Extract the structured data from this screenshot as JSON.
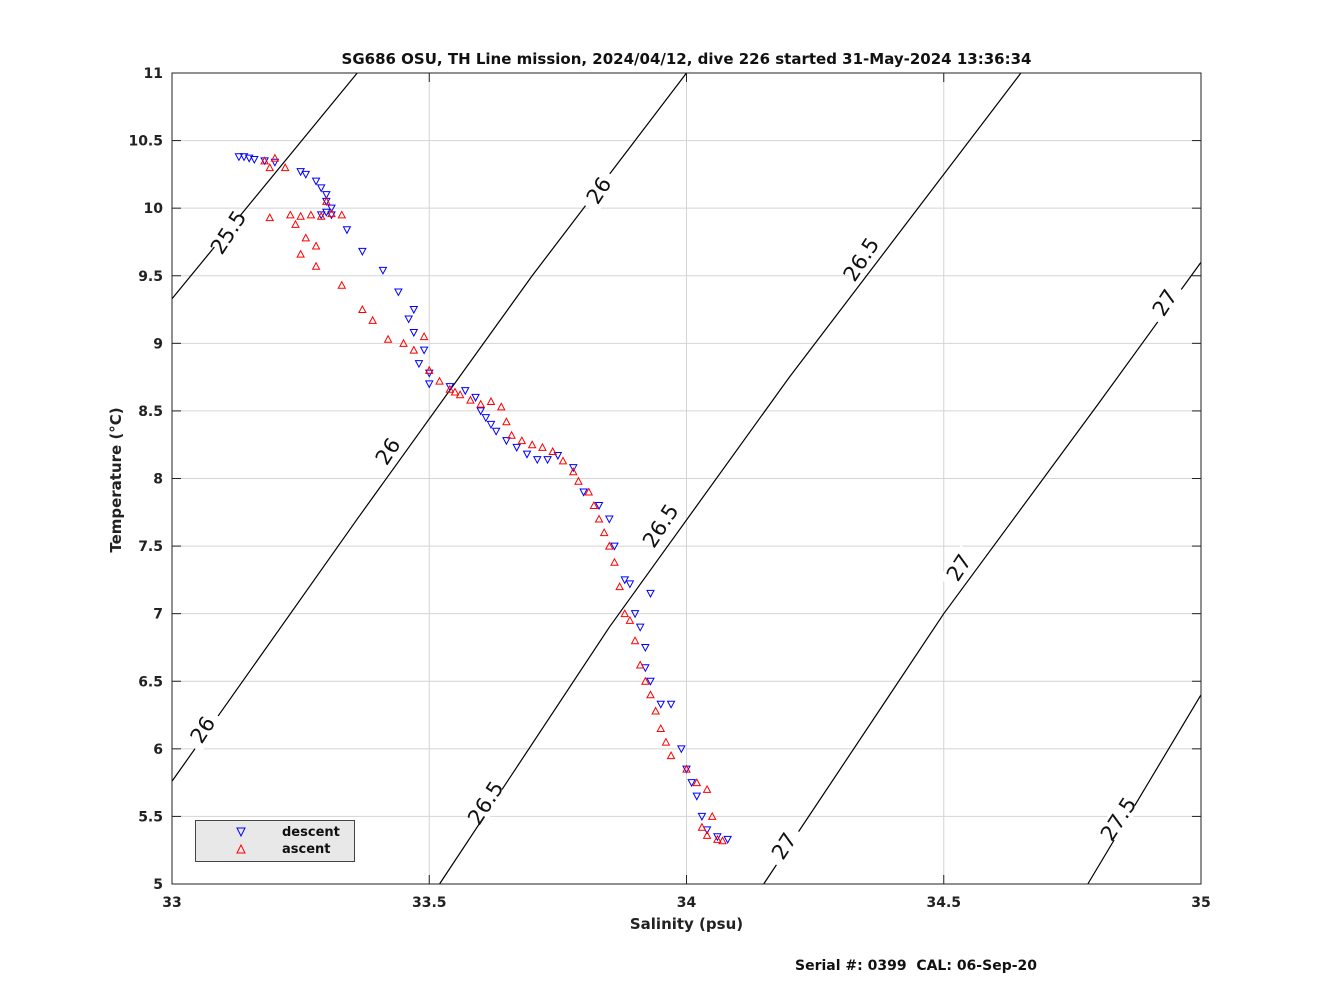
{
  "chart_data": {
    "type": "scatter",
    "title": "SG686 OSU, TH Line mission, 2024/04/12, dive 226 started 31-May-2024 13:36:34",
    "xlabel": "Salinity (psu)",
    "ylabel": "Temperature (°C)",
    "xlim": [
      33,
      35
    ],
    "ylim": [
      5,
      11
    ],
    "xticks": [
      "33",
      "33.5",
      "34",
      "34.5",
      "35"
    ],
    "yticks": [
      "5",
      "5.5",
      "6",
      "6.5",
      "7",
      "7.5",
      "8",
      "8.5",
      "9",
      "9.5",
      "10",
      "10.5",
      "11"
    ],
    "grid": true,
    "legend_position": "bottom-left",
    "isopycnals": [
      {
        "value": 25.5,
        "points": [
          [
            33.0,
            9.33
          ],
          [
            33.36,
            11.0
          ]
        ],
        "labels": [
          {
            "text": "25.5",
            "x": 33.11,
            "y": 9.82
          }
        ]
      },
      {
        "value": 26.0,
        "points": [
          [
            33.0,
            5.76
          ],
          [
            33.36,
            7.7
          ],
          [
            33.7,
            9.5
          ],
          [
            34.0,
            11.0
          ]
        ],
        "labels": [
          {
            "text": "26",
            "x": 33.06,
            "y": 6.14
          },
          {
            "text": "26",
            "x": 33.42,
            "y": 8.2
          },
          {
            "text": "26",
            "x": 33.83,
            "y": 10.13
          }
        ]
      },
      {
        "value": 26.5,
        "points": [
          [
            33.52,
            5.0
          ],
          [
            33.85,
            6.9
          ],
          [
            34.2,
            8.75
          ],
          [
            34.65,
            11.0
          ]
        ],
        "labels": [
          {
            "text": "26.5",
            "x": 33.61,
            "y": 5.6
          },
          {
            "text": "26.5",
            "x": 33.95,
            "y": 7.65
          },
          {
            "text": "26.5",
            "x": 34.34,
            "y": 9.62
          }
        ]
      },
      {
        "value": 27.0,
        "points": [
          [
            34.15,
            5.0
          ],
          [
            34.5,
            7.0
          ],
          [
            34.8,
            8.55
          ],
          [
            35.0,
            9.6
          ]
        ],
        "labels": [
          {
            "text": "27",
            "x": 34.19,
            "y": 5.28
          },
          {
            "text": "27",
            "x": 34.53,
            "y": 7.34
          },
          {
            "text": "27",
            "x": 34.93,
            "y": 9.3
          }
        ]
      },
      {
        "value": 27.5,
        "points": [
          [
            34.78,
            5.0
          ],
          [
            35.0,
            6.4
          ]
        ],
        "labels": [
          {
            "text": "27.5",
            "x": 34.84,
            "y": 5.48
          }
        ]
      }
    ],
    "series": [
      {
        "name": "descent",
        "color": "#0000ff",
        "marker": "triangle-down",
        "x": [
          33.13,
          33.14,
          33.15,
          33.16,
          33.18,
          33.2,
          33.25,
          33.26,
          33.28,
          33.29,
          33.3,
          33.3,
          33.31,
          33.29,
          33.3,
          33.31,
          33.34,
          33.37,
          33.41,
          33.44,
          33.47,
          33.46,
          33.47,
          33.49,
          33.48,
          33.5,
          33.5,
          33.54,
          33.57,
          33.59,
          33.6,
          33.61,
          33.62,
          33.63,
          33.65,
          33.67,
          33.69,
          33.71,
          33.73,
          33.75,
          33.78,
          33.8,
          33.83,
          33.85,
          33.86,
          33.88,
          33.89,
          33.9,
          33.91,
          33.92,
          33.93,
          33.92,
          33.93,
          33.95,
          33.97,
          33.99,
          34.0,
          34.01,
          34.02,
          34.03,
          34.04,
          34.06,
          34.08
        ],
        "y": [
          10.38,
          10.38,
          10.37,
          10.36,
          10.35,
          10.34,
          10.27,
          10.25,
          10.2,
          10.15,
          10.1,
          10.05,
          10.0,
          9.95,
          9.97,
          9.95,
          9.84,
          9.68,
          9.54,
          9.38,
          9.25,
          9.18,
          9.08,
          8.95,
          8.85,
          8.78,
          8.7,
          8.68,
          8.65,
          8.6,
          8.5,
          8.45,
          8.4,
          8.35,
          8.28,
          8.23,
          8.18,
          8.14,
          8.14,
          8.17,
          8.08,
          7.9,
          7.8,
          7.7,
          7.5,
          7.25,
          7.22,
          7.0,
          6.9,
          6.75,
          7.15,
          6.6,
          6.5,
          6.33,
          6.33,
          6.0,
          5.85,
          5.75,
          5.65,
          5.5,
          5.4,
          5.35,
          5.33
        ]
      },
      {
        "name": "ascent",
        "color": "#ff0000",
        "marker": "triangle-up",
        "x": [
          33.18,
          33.19,
          33.2,
          33.22,
          33.19,
          33.23,
          33.25,
          33.27,
          33.29,
          33.31,
          33.33,
          33.3,
          33.24,
          33.26,
          33.28,
          33.25,
          33.28,
          33.33,
          33.37,
          33.39,
          33.42,
          33.45,
          33.47,
          33.49,
          33.5,
          33.52,
          33.54,
          33.55,
          33.56,
          33.58,
          33.6,
          33.62,
          33.64,
          33.65,
          33.66,
          33.68,
          33.7,
          33.72,
          33.74,
          33.76,
          33.78,
          33.79,
          33.81,
          33.82,
          33.83,
          33.84,
          33.85,
          33.86,
          33.87,
          33.88,
          33.89,
          33.9,
          33.91,
          33.92,
          33.93,
          33.94,
          33.95,
          33.96,
          33.97,
          34.0,
          34.02,
          34.04,
          34.05,
          34.03,
          34.04,
          34.06,
          34.07
        ],
        "y": [
          10.35,
          10.3,
          10.37,
          10.3,
          9.93,
          9.95,
          9.94,
          9.95,
          9.94,
          9.96,
          9.95,
          10.05,
          9.88,
          9.78,
          9.72,
          9.66,
          9.57,
          9.43,
          9.25,
          9.17,
          9.03,
          9.0,
          8.95,
          9.05,
          8.8,
          8.72,
          8.66,
          8.64,
          8.62,
          8.58,
          8.55,
          8.57,
          8.53,
          8.42,
          8.32,
          8.28,
          8.25,
          8.23,
          8.2,
          8.13,
          8.05,
          7.98,
          7.9,
          7.8,
          7.7,
          7.6,
          7.5,
          7.38,
          7.2,
          7.0,
          6.95,
          6.8,
          6.62,
          6.5,
          6.4,
          6.28,
          6.15,
          6.05,
          5.95,
          5.85,
          5.75,
          5.7,
          5.5,
          5.42,
          5.36,
          5.33,
          5.32
        ]
      }
    ]
  },
  "footer": {
    "serial": "Serial #: 0399  CAL: 06-Sep-20"
  }
}
